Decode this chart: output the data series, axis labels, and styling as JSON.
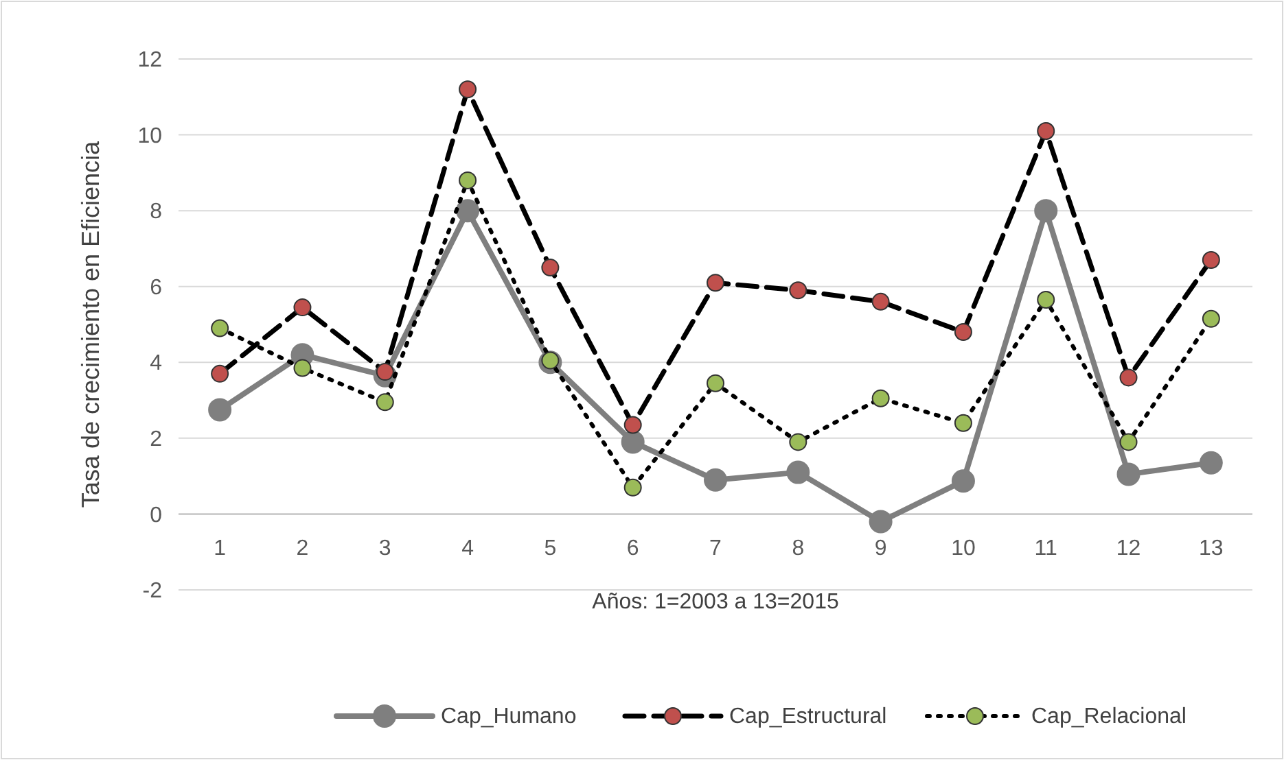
{
  "chart_data": {
    "type": "line",
    "xlabel": "Años: 1=2003   a  13=2015",
    "ylabel": "Tasa de crecimiento en Eficiencia",
    "categories": [
      "1",
      "2",
      "3",
      "4",
      "5",
      "6",
      "7",
      "8",
      "9",
      "10",
      "11",
      "12",
      "13"
    ],
    "series": [
      {
        "name": "Cap_Humano",
        "color": "#7f7f7f",
        "line_style": "solid",
        "marker": "circle",
        "values": [
          2.75,
          4.2,
          3.65,
          8.0,
          4.0,
          1.9,
          0.9,
          1.1,
          -0.2,
          0.87,
          8.0,
          1.05,
          1.35
        ]
      },
      {
        "name": "Cap_Estructural",
        "color": "#c0504d",
        "line_style": "dashed",
        "marker": "circle",
        "values": [
          3.7,
          5.45,
          3.75,
          11.2,
          6.5,
          2.35,
          6.1,
          5.9,
          5.6,
          4.8,
          10.1,
          3.6,
          6.7
        ]
      },
      {
        "name": "Cap_Relacional",
        "color": "#9bbb59",
        "line_style": "dotted",
        "marker": "circle",
        "values": [
          4.9,
          3.85,
          2.95,
          8.8,
          4.05,
          0.7,
          3.45,
          1.9,
          3.05,
          2.4,
          5.65,
          1.9,
          5.15
        ]
      }
    ],
    "ylim": [
      -2,
      12
    ],
    "yticks": [
      -2,
      0,
      2,
      4,
      6,
      8,
      10,
      12
    ],
    "grid": "y",
    "legend": "bottom"
  }
}
